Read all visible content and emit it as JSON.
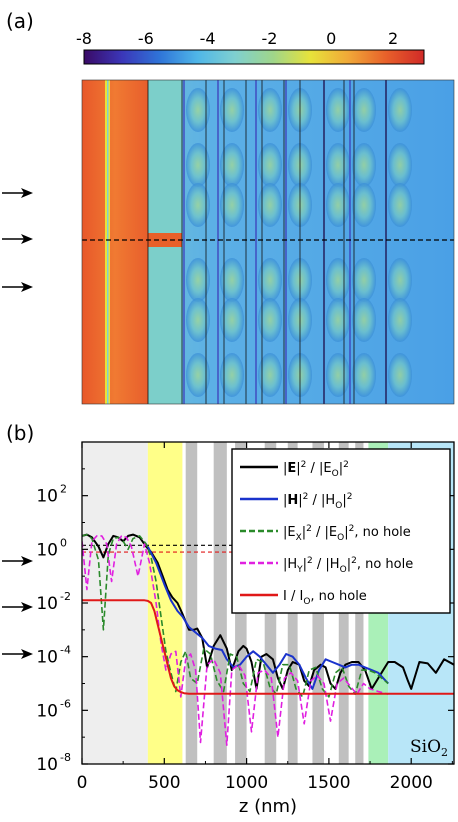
{
  "panel_a": {
    "label": "(a)",
    "colorbar": {
      "ticks": [
        "-8",
        "-6",
        "-4",
        "-2",
        "0",
        "2"
      ],
      "range": [
        -8,
        3
      ],
      "colors": [
        "#3a0a66",
        "#3b36b8",
        "#2f74d8",
        "#4fb6e8",
        "#7fd0d0",
        "#9fd68a",
        "#e8e23a",
        "#f0a838",
        "#e8602a",
        "#d02a28"
      ]
    }
  },
  "panel_b": {
    "label": "(b)",
    "substrate_label": "SiO",
    "substrate_sub": "2",
    "region_colors": {
      "air": "#eeeeee",
      "yellow": "#ffff88",
      "gray": "#c0c0c0",
      "green": "#aaf0b8",
      "sio2": "#b8e6f8"
    }
  },
  "chart_data": {
    "type": "line",
    "xlabel": "z (nm)",
    "ylabel": "",
    "xlim": [
      0,
      2260
    ],
    "ylim_log10": [
      -8,
      4
    ],
    "y_scale": "log",
    "x_ticks": [
      "0",
      "500",
      "1000",
      "1500",
      "2000"
    ],
    "y_ticks": [
      {
        "base": "10",
        "exp": "-8"
      },
      {
        "base": "10",
        "exp": "-6"
      },
      {
        "base": "10",
        "exp": "-4"
      },
      {
        "base": "10",
        "exp": "-2"
      },
      {
        "base": "10",
        "exp": "0"
      },
      {
        "base": "10",
        "exp": "2"
      }
    ],
    "regions": [
      {
        "type": "air",
        "start": 0,
        "end": 400
      },
      {
        "type": "yellow",
        "start": 400,
        "end": 610
      },
      {
        "type": "gray",
        "start": 630,
        "end": 700
      },
      {
        "type": "gray",
        "start": 800,
        "end": 880
      },
      {
        "type": "gray",
        "start": 930,
        "end": 1000
      },
      {
        "type": "gray",
        "start": 1110,
        "end": 1180
      },
      {
        "type": "gray",
        "start": 1250,
        "end": 1310
      },
      {
        "type": "gray",
        "start": 1400,
        "end": 1470
      },
      {
        "type": "gray",
        "start": 1560,
        "end": 1620
      },
      {
        "type": "gray",
        "start": 1660,
        "end": 1710
      },
      {
        "type": "green",
        "start": 1740,
        "end": 1860
      },
      {
        "type": "sio2",
        "start": 1860,
        "end": 2260
      }
    ],
    "legend": {
      "position": "top-right",
      "entries": [
        {
          "color": "#000000",
          "dash": "solid",
          "parts": [
            {
              "t": "|"
            },
            {
              "t": "E",
              "b": true
            },
            {
              "t": "|"
            },
            {
              "t": "2",
              "sup": true
            },
            {
              "t": " / |E"
            },
            {
              "t": "O",
              "sub": true
            },
            {
              "t": "|"
            },
            {
              "t": "2",
              "sup": true
            }
          ]
        },
        {
          "color": "#1a33cc",
          "dash": "solid",
          "parts": [
            {
              "t": "|"
            },
            {
              "t": "H",
              "b": true
            },
            {
              "t": "|"
            },
            {
              "t": "2",
              "sup": true
            },
            {
              "t": " / |H"
            },
            {
              "t": "O",
              "sub": true
            },
            {
              "t": "|"
            },
            {
              "t": "2",
              "sup": true
            }
          ]
        },
        {
          "color": "#2a8a2a",
          "dash": "dashed",
          "parts": [
            {
              "t": "|E"
            },
            {
              "t": "X",
              "sub": true
            },
            {
              "t": "|"
            },
            {
              "t": "2",
              "sup": true
            },
            {
              "t": " / |E"
            },
            {
              "t": "O",
              "sub": true
            },
            {
              "t": "|"
            },
            {
              "t": "2",
              "sup": true
            },
            {
              "t": ", no hole"
            }
          ]
        },
        {
          "color": "#e020e0",
          "dash": "dashed",
          "parts": [
            {
              "t": "|H"
            },
            {
              "t": "Y",
              "sub": true
            },
            {
              "t": "|"
            },
            {
              "t": "2",
              "sup": true
            },
            {
              "t": " / |H"
            },
            {
              "t": "O",
              "sub": true
            },
            {
              "t": "|"
            },
            {
              "t": "2",
              "sup": true
            },
            {
              "t": ", no hole"
            }
          ]
        },
        {
          "color": "#e01818",
          "dash": "solid",
          "parts": [
            {
              "t": "I / I"
            },
            {
              "t": "O",
              "sub": true
            },
            {
              "t": ", no hole"
            }
          ]
        }
      ]
    },
    "reference_lines": [
      {
        "color": "#000000",
        "log10": 0.15,
        "x_start": 0,
        "x_end": 1860
      },
      {
        "color": "#e01818",
        "log10": -0.1,
        "x_start": 0,
        "x_end": 1860
      }
    ],
    "series": [
      {
        "name": "|E|² / |EO|²",
        "color": "#000000",
        "dash": "solid",
        "x": [
          0,
          30,
          60,
          100,
          130,
          160,
          190,
          220,
          250,
          280,
          310,
          350,
          390,
          420,
          460,
          490,
          520,
          550,
          580,
          610,
          650,
          680,
          700,
          730,
          760,
          800,
          840,
          880,
          910,
          950,
          980,
          1000,
          1030,
          1060,
          1090,
          1120,
          1160,
          1190,
          1220,
          1250,
          1280,
          1320,
          1350,
          1380,
          1410,
          1450,
          1480,
          1510,
          1540,
          1570,
          1600,
          1640,
          1680,
          1720,
          1760,
          1800,
          1860,
          1900,
          1950,
          1980,
          2000,
          2050,
          2100,
          2150,
          2200,
          2260
        ],
        "log10": [
          0.5,
          0.55,
          0.45,
          0.1,
          -0.3,
          0.2,
          0.5,
          0.45,
          0.3,
          0.5,
          0.55,
          0.45,
          0.1,
          -0.1,
          -0.5,
          -1.0,
          -1.5,
          -1.8,
          -2.0,
          -2.4,
          -3.0,
          -3.0,
          -2.95,
          -3.3,
          -4.4,
          -3.6,
          -3.2,
          -3.7,
          -4.5,
          -3.8,
          -3.6,
          -3.7,
          -4.2,
          -5.2,
          -4.0,
          -3.9,
          -4.1,
          -4.8,
          -5.2,
          -4.5,
          -4.2,
          -4.3,
          -4.9,
          -5.1,
          -4.5,
          -4.3,
          -4.4,
          -5.0,
          -5.2,
          -4.6,
          -4.3,
          -4.2,
          -4.2,
          -4.5,
          -5.2,
          -4.8,
          -4.2,
          -4.2,
          -4.4,
          -4.9,
          -5.2,
          -4.2,
          -4.25,
          -4.6,
          -4.1,
          -4.3
        ]
      },
      {
        "name": "|H|² / |HO|²",
        "color": "#1a33cc",
        "dash": "solid",
        "x": [
          400,
          450,
          500,
          540,
          580,
          610,
          650,
          690,
          730,
          770,
          810,
          850,
          880,
          920,
          960,
          1000,
          1040,
          1080,
          1120,
          1160,
          1200,
          1240,
          1280,
          1320,
          1360,
          1400,
          1440,
          1480,
          1520,
          1560,
          1600,
          1640,
          1680,
          1720,
          1760,
          1800,
          1860
        ],
        "log10": [
          0.1,
          -0.5,
          -1.3,
          -1.9,
          -2.3,
          -2.5,
          -2.9,
          -3.1,
          -3.3,
          -3.6,
          -3.7,
          -3.75,
          -4.1,
          -4.4,
          -4.3,
          -4.0,
          -3.8,
          -4.0,
          -4.3,
          -4.6,
          -4.3,
          -3.9,
          -4.0,
          -4.3,
          -4.8,
          -5.2,
          -4.5,
          -4.1,
          -4.2,
          -4.3,
          -4.4,
          -4.3,
          -4.3,
          -4.4,
          -4.5,
          -4.6,
          -5.0
        ]
      },
      {
        "name": "|EX|² / |EO|², no hole",
        "color": "#2a8a2a",
        "dash": "dashed",
        "x": [
          0,
          30,
          60,
          100,
          130,
          160,
          190,
          220,
          250,
          280,
          310,
          350,
          390,
          420,
          450,
          480,
          510,
          540,
          570,
          600,
          630,
          660,
          700,
          740,
          780,
          820,
          860,
          900,
          940,
          980,
          1020,
          1060,
          1100,
          1140,
          1180,
          1220,
          1260,
          1300,
          1340,
          1380,
          1420,
          1460,
          1500,
          1540,
          1580,
          1620,
          1660,
          1700,
          1740,
          1780,
          1820,
          1860
        ],
        "log10": [
          0.5,
          0.55,
          0.4,
          -0.4,
          -3.0,
          -0.2,
          0.4,
          0.45,
          0.3,
          0.0,
          0.4,
          0.5,
          0.2,
          -0.3,
          -1.2,
          -2.5,
          -3.8,
          -4.6,
          -5.3,
          -4.2,
          -3.8,
          -4.8,
          -5.0,
          -3.7,
          -3.9,
          -4.9,
          -5.3,
          -3.9,
          -4.0,
          -5.0,
          -5.3,
          -4.1,
          -4.2,
          -5.1,
          -5.4,
          -4.3,
          -4.3,
          -5.2,
          -5.5,
          -4.5,
          -4.4,
          -5.2,
          -5.5,
          -4.6,
          -4.4,
          -5.1,
          -5.4,
          -4.5,
          -4.5,
          -4.6,
          -4.8,
          -5.0
        ]
      },
      {
        "name": "|HY|² / |HO|², no hole",
        "color": "#e020e0",
        "dash": "dashed",
        "x": [
          0,
          30,
          60,
          90,
          120,
          150,
          180,
          210,
          240,
          270,
          300,
          340,
          380,
          410,
          450,
          480,
          510,
          540,
          570,
          600,
          630,
          660,
          690,
          720,
          760,
          800,
          840,
          880,
          910,
          950,
          990,
          1030,
          1070,
          1110,
          1150,
          1190,
          1230,
          1270,
          1310,
          1350,
          1390,
          1430,
          1470,
          1510,
          1550,
          1590,
          1630,
          1670,
          1710,
          1750,
          1800,
          1860
        ],
        "log10": [
          0.3,
          -1.5,
          0.3,
          0.5,
          0.5,
          0.2,
          -1.2,
          0.2,
          0.5,
          0.45,
          0.1,
          -1.0,
          0.2,
          -0.5,
          -2.0,
          -3.5,
          -4.5,
          -3.9,
          -3.8,
          -5.5,
          -4.1,
          -3.9,
          -4.5,
          -7.2,
          -4.3,
          -4.1,
          -4.6,
          -7.3,
          -4.5,
          -4.3,
          -4.7,
          -6.8,
          -4.6,
          -4.5,
          -4.8,
          -7.0,
          -4.8,
          -4.6,
          -4.9,
          -6.5,
          -4.9,
          -4.7,
          -5.0,
          -6.4,
          -5.0,
          -4.8,
          -5.1,
          -5.4,
          -5.0,
          -5.2,
          -5.3,
          -5.4
        ]
      },
      {
        "name": "I / IO, no hole",
        "color": "#e01818",
        "dash": "solid",
        "x": [
          0,
          380,
          400,
          420,
          440,
          460,
          480,
          500,
          520,
          540,
          560,
          580,
          600,
          620,
          650,
          700,
          800,
          1000,
          1200,
          1500,
          1860,
          2260
        ],
        "log10": [
          -1.9,
          -1.9,
          -1.92,
          -2.0,
          -2.3,
          -2.8,
          -3.3,
          -3.8,
          -4.3,
          -4.8,
          -5.1,
          -5.25,
          -5.32,
          -5.36,
          -5.38,
          -5.38,
          -5.38,
          -5.38,
          -5.38,
          -5.38,
          -5.38,
          -5.38
        ]
      }
    ]
  }
}
